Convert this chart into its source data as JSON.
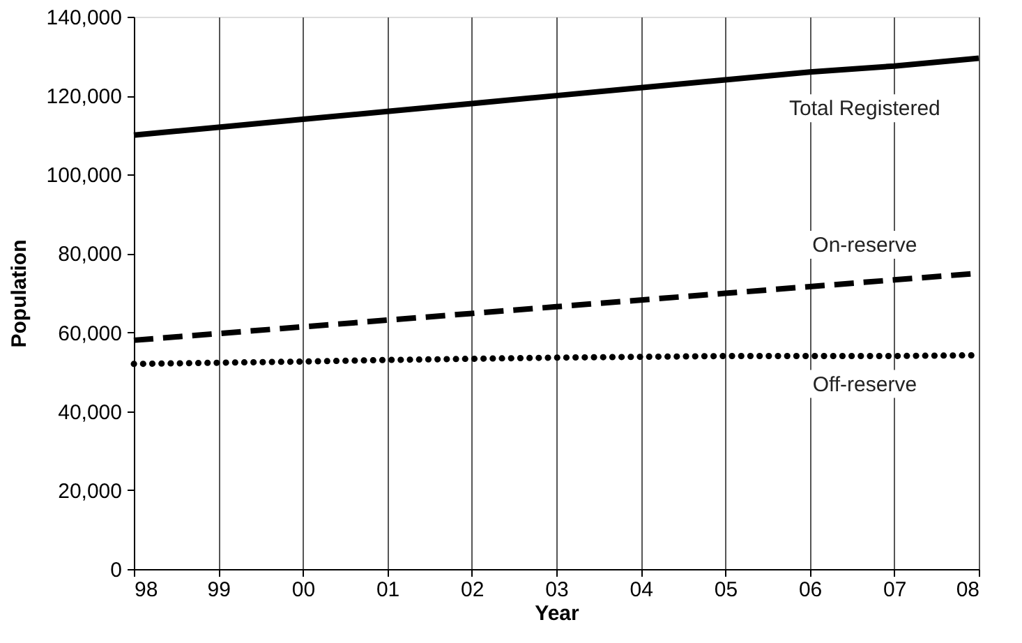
{
  "chart_data": {
    "type": "line",
    "xlabel": "Year",
    "ylabel": "Population",
    "categories": [
      "98",
      "99",
      "00",
      "01",
      "02",
      "03",
      "04",
      "05",
      "06",
      "07",
      "08"
    ],
    "series": [
      {
        "name": "Total Registered",
        "color": "#000000",
        "line_style": "solid",
        "values": [
          110000,
          112000,
          114000,
          116000,
          118000,
          120000,
          122000,
          124000,
          126000,
          127500,
          129500
        ]
      },
      {
        "name": "On-reserve",
        "color": "#000000",
        "line_style": "dashed",
        "values": [
          58000,
          59700,
          61400,
          63100,
          64800,
          66500,
          68200,
          69900,
          71600,
          73300,
          75000
        ]
      },
      {
        "name": "Off-reserve",
        "color": "#000000",
        "line_style": "dotted",
        "values": [
          52000,
          52300,
          52600,
          53000,
          53300,
          53600,
          53800,
          54000,
          54000,
          54000,
          54200
        ]
      }
    ],
    "ylim": [
      0,
      140000
    ],
    "yticks": [
      0,
      {
        "value": 20000,
        "label": "20,000"
      },
      {
        "value": 40000,
        "label": "40,000"
      },
      {
        "value": 60000,
        "label": "60,000"
      },
      {
        "value": 80000,
        "label": "80,000"
      },
      {
        "value": 100000,
        "label": "100,000"
      },
      {
        "value": 120000,
        "label": "120,000"
      },
      {
        "value": 140000,
        "label": "140,000"
      }
    ],
    "grid": "x",
    "marker": "none"
  }
}
